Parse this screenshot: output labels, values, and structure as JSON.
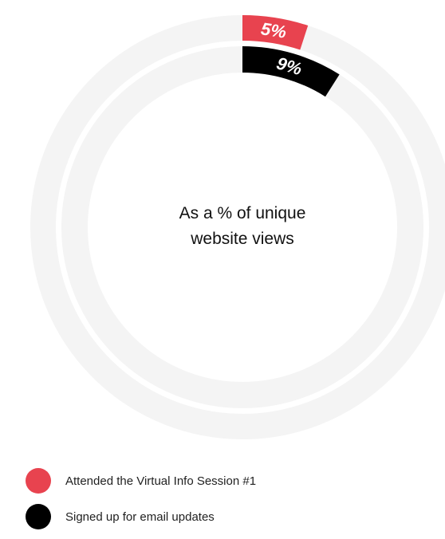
{
  "chart_data": {
    "type": "donut",
    "center_label": [
      "As a % of unique",
      "website views"
    ],
    "series": [
      {
        "name": "Attended the Virtual Info Session #1",
        "value": 5,
        "label": "5%",
        "color": "#e8434f"
      },
      {
        "name": "Signed up for email updates",
        "value": 9,
        "label": "9%",
        "color": "#000000"
      }
    ],
    "track_color": "#f4f4f4",
    "max": 100,
    "legend_position": "bottom-left"
  }
}
